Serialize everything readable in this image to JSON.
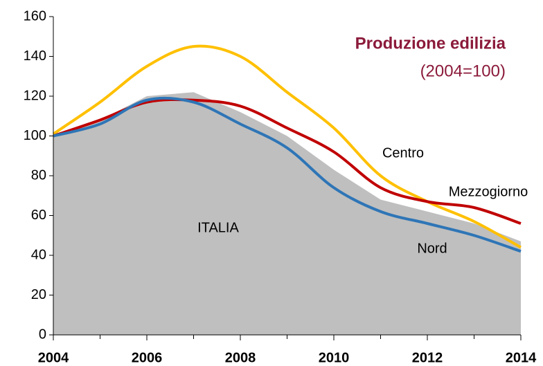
{
  "chart_data": {
    "type": "line",
    "title": "Produzione edilizia",
    "subtitle": "(2004=100)",
    "x": [
      2004,
      2005,
      2006,
      2007,
      2008,
      2009,
      2010,
      2011,
      2012,
      2013,
      2014
    ],
    "series": [
      {
        "name": "ITALIA",
        "style": "area",
        "color": "#bfbfbf",
        "values": [
          100,
          108,
          120,
          122,
          112,
          100,
          83,
          68,
          62,
          56,
          47
        ]
      },
      {
        "name": "Centro",
        "style": "line",
        "color": "#ffc000",
        "values": [
          101,
          117,
          135,
          145,
          140,
          122,
          104,
          80,
          67,
          57,
          44
        ]
      },
      {
        "name": "Mezzogiorno",
        "style": "line",
        "color": "#c00000",
        "values": [
          100,
          108,
          117,
          118,
          115,
          104,
          92,
          74,
          67,
          64,
          56
        ]
      },
      {
        "name": "Nord",
        "style": "line",
        "color": "#2e75b6",
        "values": [
          100,
          106,
          118,
          117,
          106,
          94,
          74,
          62,
          56,
          50,
          42
        ]
      }
    ],
    "xlim": [
      2004,
      2014
    ],
    "xticks": [
      2004,
      2006,
      2008,
      2010,
      2012,
      2014
    ],
    "ylim": [
      0,
      160
    ],
    "yticks": [
      0,
      20,
      40,
      60,
      80,
      100,
      120,
      140,
      160
    ]
  }
}
